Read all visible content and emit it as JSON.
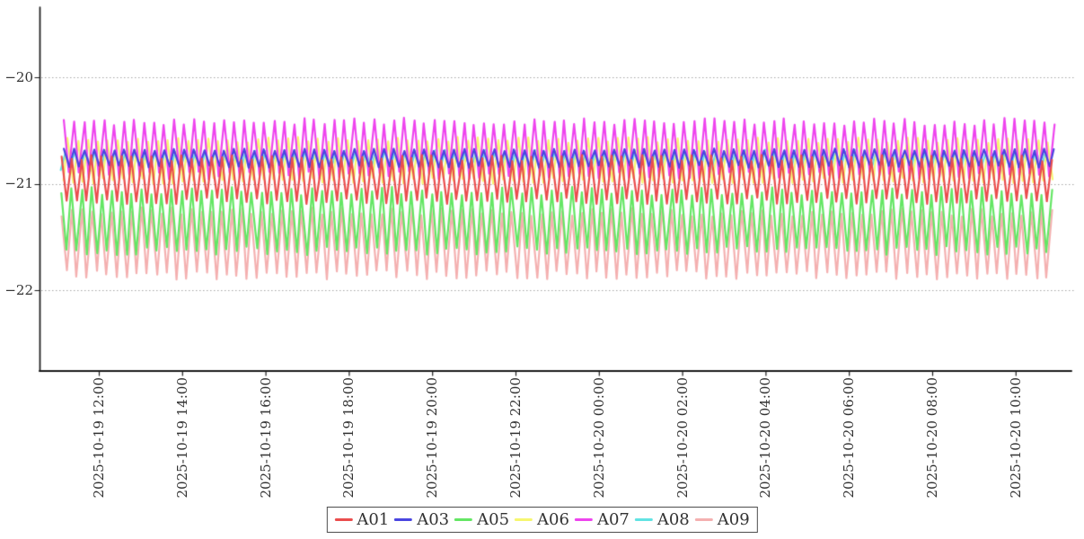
{
  "chart_data": {
    "type": "line",
    "title": "",
    "xlabel": "",
    "ylabel": "",
    "grid": "horizontal-dotted",
    "legend_position": "bottom-center",
    "x_axis_type": "datetime",
    "x_start": "2025-10-19 11:00",
    "x_end": "2025-10-20 11:00",
    "x_span_hours": 24,
    "x_ticks": [
      "2025-10-19 12:00",
      "2025-10-19 14:00",
      "2025-10-19 16:00",
      "2025-10-19 18:00",
      "2025-10-19 20:00",
      "2025-10-19 22:00",
      "2025-10-20 00:00",
      "2025-10-20 02:00",
      "2025-10-20 04:00",
      "2025-10-20 06:00",
      "2025-10-20 08:00",
      "2025-10-20 10:00"
    ],
    "y_tick_labels": [
      "−20",
      "−21",
      "−22"
    ],
    "y_tick_values": [
      -20,
      -21,
      -22
    ],
    "ylim": [
      -22.75,
      -19.35
    ],
    "waveform": "high-frequency zigzag oscillation",
    "oscillation_period_minutes": 14.4,
    "series": [
      {
        "name": "A01",
        "color": "#ea4d4d",
        "mean": -20.96,
        "amplitude": 0.23,
        "envelope_min": -21.2,
        "envelope_max": -20.73,
        "seed": 1,
        "z": 5
      },
      {
        "name": "A03",
        "color": "#4a46e0",
        "mean": -20.76,
        "amplitude": 0.09,
        "envelope_min": -20.85,
        "envelope_max": -20.67,
        "seed": 3,
        "z": 4
      },
      {
        "name": "A05",
        "color": "#64e664",
        "mean": -21.35,
        "amplitude": 0.32,
        "envelope_min": -21.67,
        "envelope_max": -21.03,
        "seed": 5,
        "z": 7
      },
      {
        "name": "A06",
        "color": "#f6f670",
        "mean": -20.78,
        "amplitude": 0.22,
        "envelope_min": -21.0,
        "envelope_max": -20.56,
        "seed": 6,
        "z": 2
      },
      {
        "name": "A07",
        "color": "#ee44ee",
        "mean": -20.67,
        "amplitude": 0.29,
        "envelope_min": -20.96,
        "envelope_max": -20.38,
        "seed": 7,
        "z": 3
      },
      {
        "name": "A08",
        "color": "#62e3e3",
        "mean": -20.78,
        "amplitude": 0.1,
        "envelope_min": -20.88,
        "envelope_max": -20.68,
        "seed": 8,
        "z": 1
      },
      {
        "name": "A09",
        "color": "#f4b0b0",
        "mean": -21.56,
        "amplitude": 0.34,
        "envelope_min": -21.9,
        "envelope_max": -21.22,
        "seed": 9,
        "z": 6
      }
    ]
  }
}
